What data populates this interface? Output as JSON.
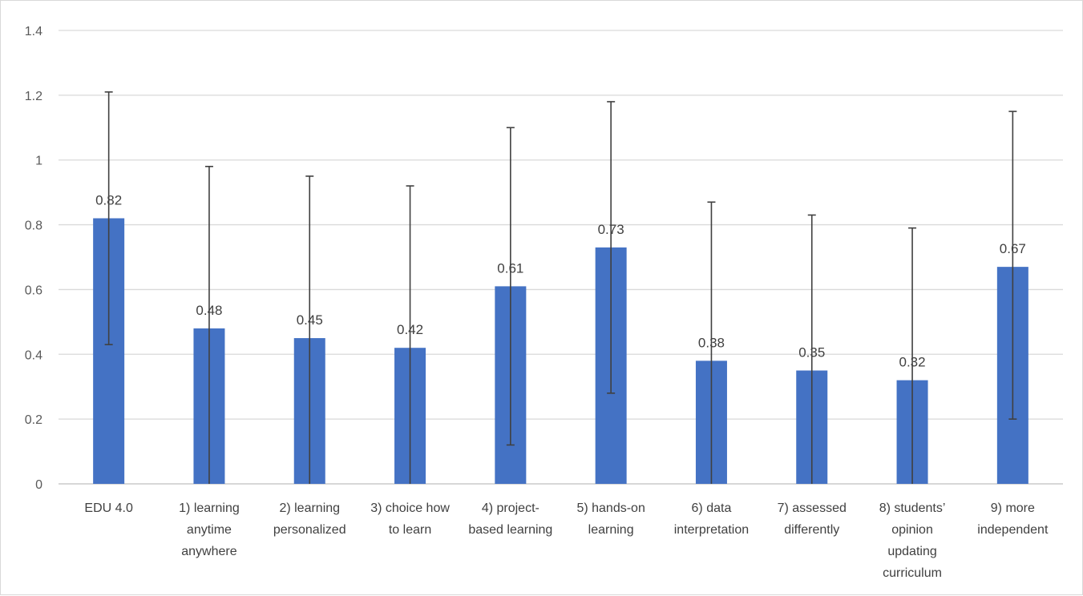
{
  "chart_data": {
    "type": "bar",
    "title": "",
    "xlabel": "",
    "ylabel": "",
    "ylim": [
      0,
      1.4
    ],
    "yticks": [
      "0",
      "0.2",
      "0.4",
      "0.6",
      "0.8",
      "1",
      "1.2",
      "1.4"
    ],
    "grid": true,
    "legend": "none",
    "bar_color": "#4472c4",
    "categories": [
      [
        "EDU 4.0"
      ],
      [
        "1) learning",
        "anytime",
        "anywhere"
      ],
      [
        "2) learning",
        "personalized"
      ],
      [
        "3) choice how",
        "to learn"
      ],
      [
        "4) project-",
        "based learning"
      ],
      [
        "5) hands-on",
        "learning"
      ],
      [
        "6) data",
        "interpretation"
      ],
      [
        "7) assessed",
        "differently"
      ],
      [
        "8) students’",
        "opinion",
        "updating",
        "curriculum"
      ],
      [
        "9) more",
        "independent"
      ]
    ],
    "values": [
      0.82,
      0.48,
      0.45,
      0.42,
      0.61,
      0.73,
      0.38,
      0.35,
      0.32,
      0.67
    ],
    "data_labels": [
      "0.82",
      "0.48",
      "0.45",
      "0.42",
      "0.61",
      "0.73",
      "0.38",
      "0.35",
      "0.32",
      "0.67"
    ],
    "error_bars": [
      {
        "low": 0.43,
        "high": 1.21
      },
      {
        "low": 0.0,
        "high": 0.98
      },
      {
        "low": 0.0,
        "high": 0.95
      },
      {
        "low": 0.0,
        "high": 0.92
      },
      {
        "low": 0.12,
        "high": 1.1
      },
      {
        "low": 0.28,
        "high": 1.18
      },
      {
        "low": 0.0,
        "high": 0.87
      },
      {
        "low": 0.0,
        "high": 0.83
      },
      {
        "low": 0.0,
        "high": 0.79
      },
      {
        "low": 0.2,
        "high": 1.15
      }
    ]
  }
}
